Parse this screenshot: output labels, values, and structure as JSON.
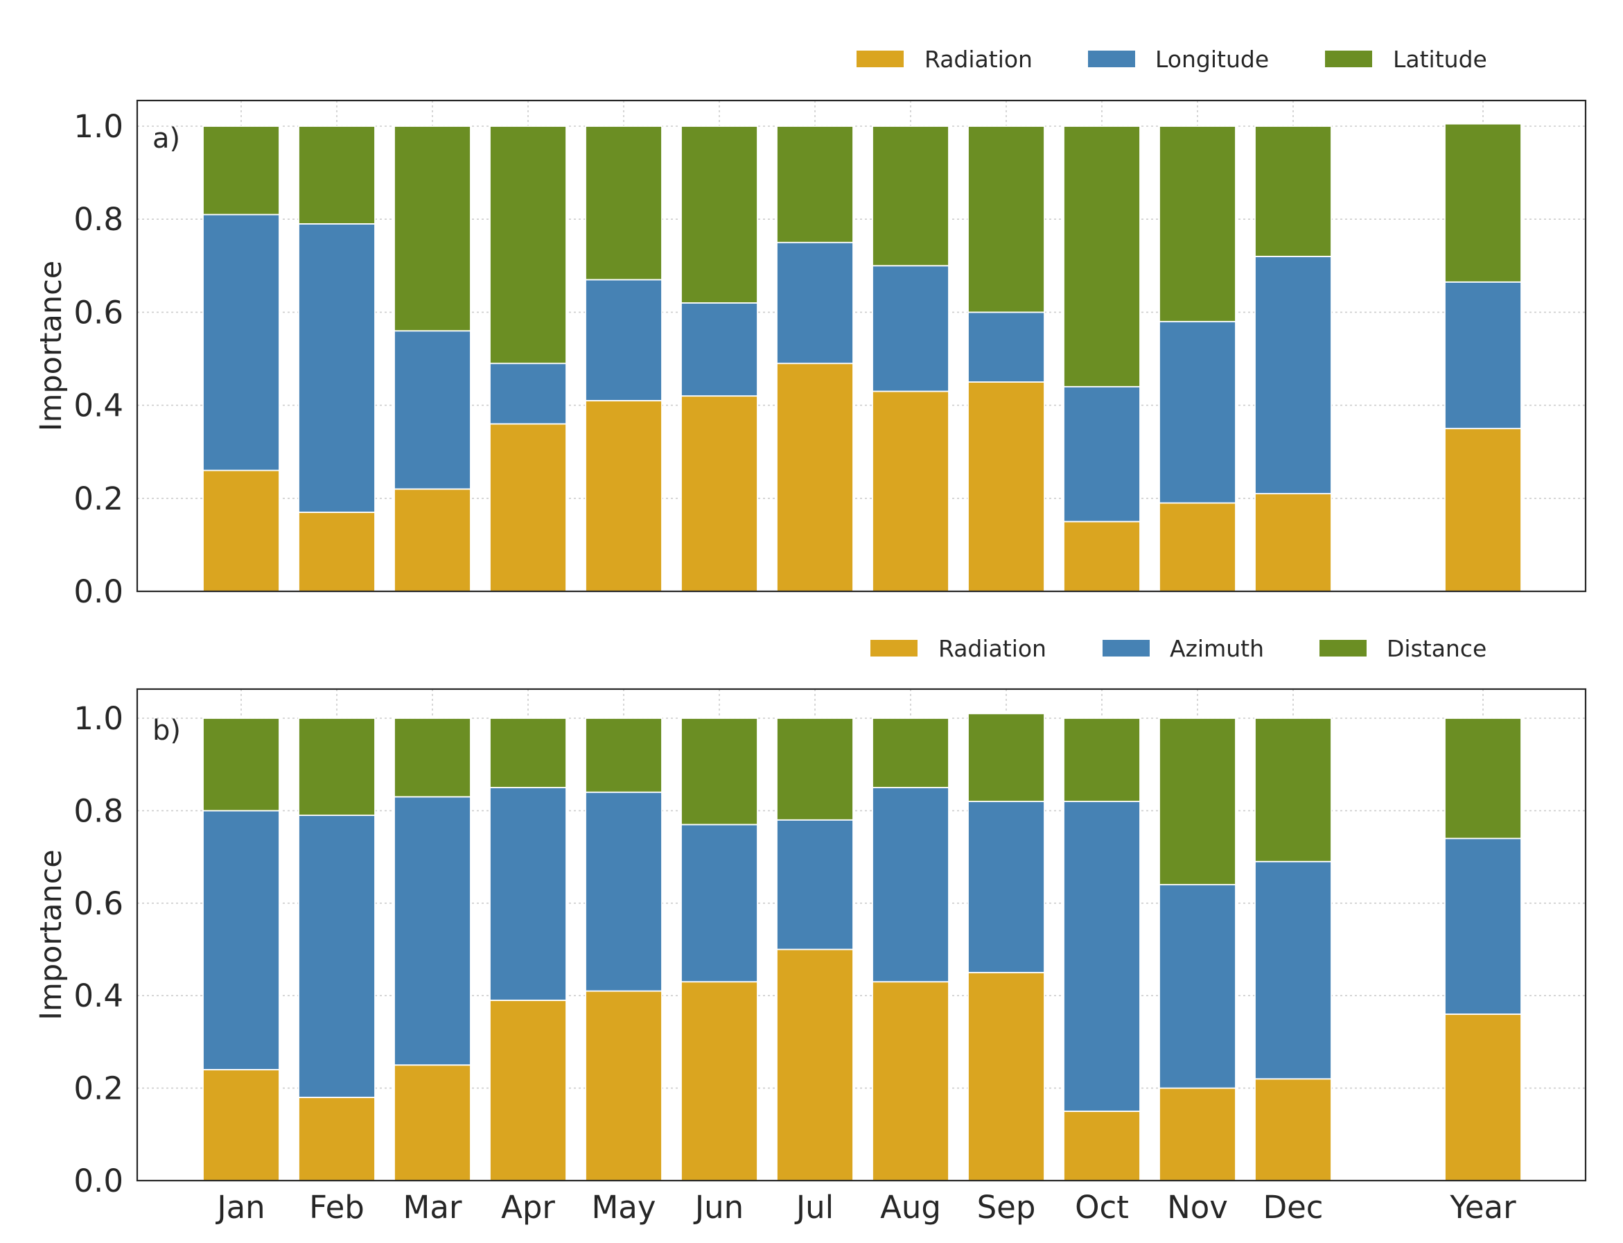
{
  "colors": {
    "radiation": "#DAA520",
    "second": "#4682B4",
    "third": "#6B8E23"
  },
  "chart_data": [
    {
      "type": "bar",
      "stacked": true,
      "panel_label": "a)",
      "categories": [
        "Jan",
        "Feb",
        "Mar",
        "Apr",
        "May",
        "Jun",
        "Jul",
        "Aug",
        "Sep",
        "Oct",
        "Nov",
        "Dec",
        "Year"
      ],
      "ylabel": "Importance",
      "ylim": [
        0,
        1.05
      ],
      "yticks": [
        "0.0",
        "0.2",
        "0.4",
        "0.6",
        "0.8",
        "1.0"
      ],
      "grid": true,
      "legend_position": "top-right",
      "series": [
        {
          "name": "Radiation",
          "values": [
            0.26,
            0.17,
            0.22,
            0.36,
            0.41,
            0.42,
            0.49,
            0.43,
            0.45,
            0.15,
            0.19,
            0.21,
            0.35
          ]
        },
        {
          "name": "Longitude",
          "values": [
            0.55,
            0.62,
            0.34,
            0.13,
            0.26,
            0.2,
            0.26,
            0.27,
            0.15,
            0.29,
            0.39,
            0.51,
            0.315
          ]
        },
        {
          "name": "Latitude",
          "values": [
            0.19,
            0.21,
            0.44,
            0.51,
            0.33,
            0.38,
            0.25,
            0.3,
            0.4,
            0.56,
            0.42,
            0.28,
            0.34
          ]
        }
      ]
    },
    {
      "type": "bar",
      "stacked": true,
      "panel_label": "b)",
      "categories": [
        "Jan",
        "Feb",
        "Mar",
        "Apr",
        "May",
        "Jun",
        "Jul",
        "Aug",
        "Sep",
        "Oct",
        "Nov",
        "Dec",
        "Year"
      ],
      "ylabel": "Importance",
      "ylim": [
        0,
        1.05
      ],
      "yticks": [
        "0.0",
        "0.2",
        "0.4",
        "0.6",
        "0.8",
        "1.0"
      ],
      "grid": true,
      "legend_position": "top-right",
      "series": [
        {
          "name": "Radiation",
          "values": [
            0.24,
            0.18,
            0.25,
            0.39,
            0.41,
            0.43,
            0.5,
            0.43,
            0.45,
            0.15,
            0.2,
            0.22,
            0.36
          ]
        },
        {
          "name": "Azimuth",
          "values": [
            0.56,
            0.61,
            0.58,
            0.46,
            0.43,
            0.34,
            0.28,
            0.42,
            0.37,
            0.67,
            0.44,
            0.47,
            0.38
          ]
        },
        {
          "name": "Distance",
          "values": [
            0.2,
            0.21,
            0.17,
            0.15,
            0.16,
            0.23,
            0.22,
            0.15,
            0.19,
            0.18,
            0.36,
            0.31,
            0.26
          ]
        }
      ]
    }
  ]
}
